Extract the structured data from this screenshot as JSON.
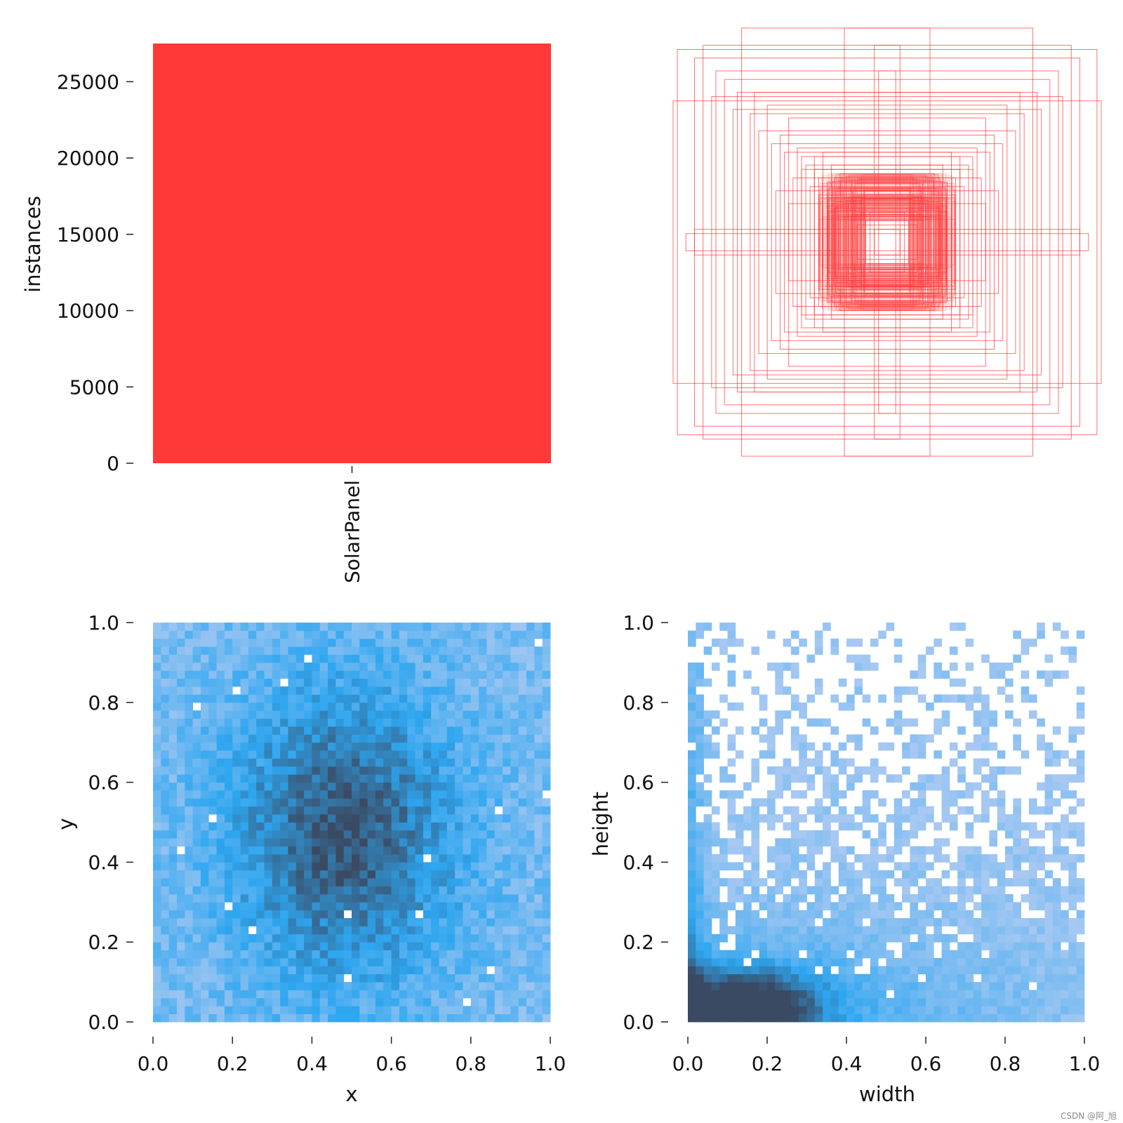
{
  "chart_data": [
    {
      "type": "bar",
      "categories": [
        "SolarPanel"
      ],
      "values": [
        27500
      ],
      "xlabel": "",
      "ylabel": "instances",
      "ylim": [
        0,
        27500
      ],
      "yticks": [
        0,
        5000,
        10000,
        15000,
        20000,
        25000
      ],
      "color": "#ff3838"
    },
    {
      "type": "scatter",
      "description_kind": "box overlay",
      "boxes_wh": [
        [
          0.46,
          0.18
        ],
        [
          0.52,
          0.24
        ],
        [
          0.38,
          0.36
        ],
        [
          0.44,
          0.3
        ],
        [
          0.3,
          0.42
        ],
        [
          0.4,
          0.4
        ],
        [
          0.34,
          0.34
        ],
        [
          0.28,
          0.28
        ],
        [
          0.5,
          0.5
        ],
        [
          0.46,
          0.58
        ],
        [
          0.6,
          0.52
        ],
        [
          0.56,
          0.64
        ],
        [
          0.64,
          0.6
        ],
        [
          0.7,
          0.7
        ],
        [
          0.76,
          0.76
        ],
        [
          0.82,
          0.68
        ],
        [
          0.9,
          0.86
        ],
        [
          0.86,
          0.92
        ],
        [
          0.98,
          0.9
        ],
        [
          0.8,
          0.8
        ],
        [
          0.2,
          1.0
        ],
        [
          0.06,
          0.92
        ],
        [
          0.04,
          0.8
        ],
        [
          0.68,
          1.0
        ],
        [
          1.0,
          0.66
        ],
        [
          0.9,
          0.06
        ],
        [
          0.94,
          0.04
        ],
        [
          0.24,
          0.24
        ],
        [
          0.36,
          0.26
        ],
        [
          0.26,
          0.36
        ],
        [
          0.32,
          0.3
        ],
        [
          0.22,
          0.32
        ],
        [
          0.32,
          0.22
        ],
        [
          0.18,
          0.18
        ],
        [
          0.16,
          0.24
        ],
        [
          0.24,
          0.16
        ],
        [
          0.14,
          0.14
        ],
        [
          0.12,
          0.2
        ],
        [
          0.2,
          0.12
        ],
        [
          0.1,
          0.1
        ],
        [
          0.08,
          0.14
        ],
        [
          0.14,
          0.08
        ],
        [
          0.06,
          0.06
        ],
        [
          0.4,
          0.34
        ],
        [
          0.34,
          0.4
        ],
        [
          0.42,
          0.44
        ],
        [
          0.48,
          0.42
        ],
        [
          0.54,
          0.46
        ],
        [
          0.62,
          0.7
        ],
        [
          0.72,
          0.62
        ]
      ],
      "color": "#ff3838"
    },
    {
      "type": "heatmap",
      "xlabel": "x",
      "ylabel": "y",
      "xlim": [
        0.0,
        1.0
      ],
      "ylim": [
        0.0,
        1.0
      ],
      "xticks": [
        "0.0",
        "0.2",
        "0.4",
        "0.6",
        "0.8",
        "1.0"
      ],
      "yticks": [
        "0.0",
        "0.2",
        "0.4",
        "0.6",
        "0.8",
        "1.0"
      ],
      "bins": 50,
      "density": {
        "peak_x": 0.48,
        "peak_y": 0.47,
        "spread_x": 0.2,
        "spread_y": 0.26
      },
      "colors": {
        "low": "#a6c8f2",
        "mid": "#2ea6f0",
        "high": "#3a4a62"
      }
    },
    {
      "type": "heatmap",
      "xlabel": "width",
      "ylabel": "height",
      "xlim": [
        0.0,
        1.0
      ],
      "ylim": [
        0.0,
        1.0
      ],
      "xticks": [
        "0.0",
        "0.2",
        "0.4",
        "0.6",
        "0.8",
        "1.0"
      ],
      "yticks": [
        "0.0",
        "0.2",
        "0.4",
        "0.6",
        "0.8",
        "1.0"
      ],
      "bins": 50,
      "density": {
        "peak_x": 0.15,
        "peak_y": 0.05
      },
      "colors": {
        "low": "#a6c8f2",
        "mid": "#2ea6f0",
        "high": "#3a4a62"
      }
    }
  ],
  "watermark": "CSDN @阿_旭"
}
